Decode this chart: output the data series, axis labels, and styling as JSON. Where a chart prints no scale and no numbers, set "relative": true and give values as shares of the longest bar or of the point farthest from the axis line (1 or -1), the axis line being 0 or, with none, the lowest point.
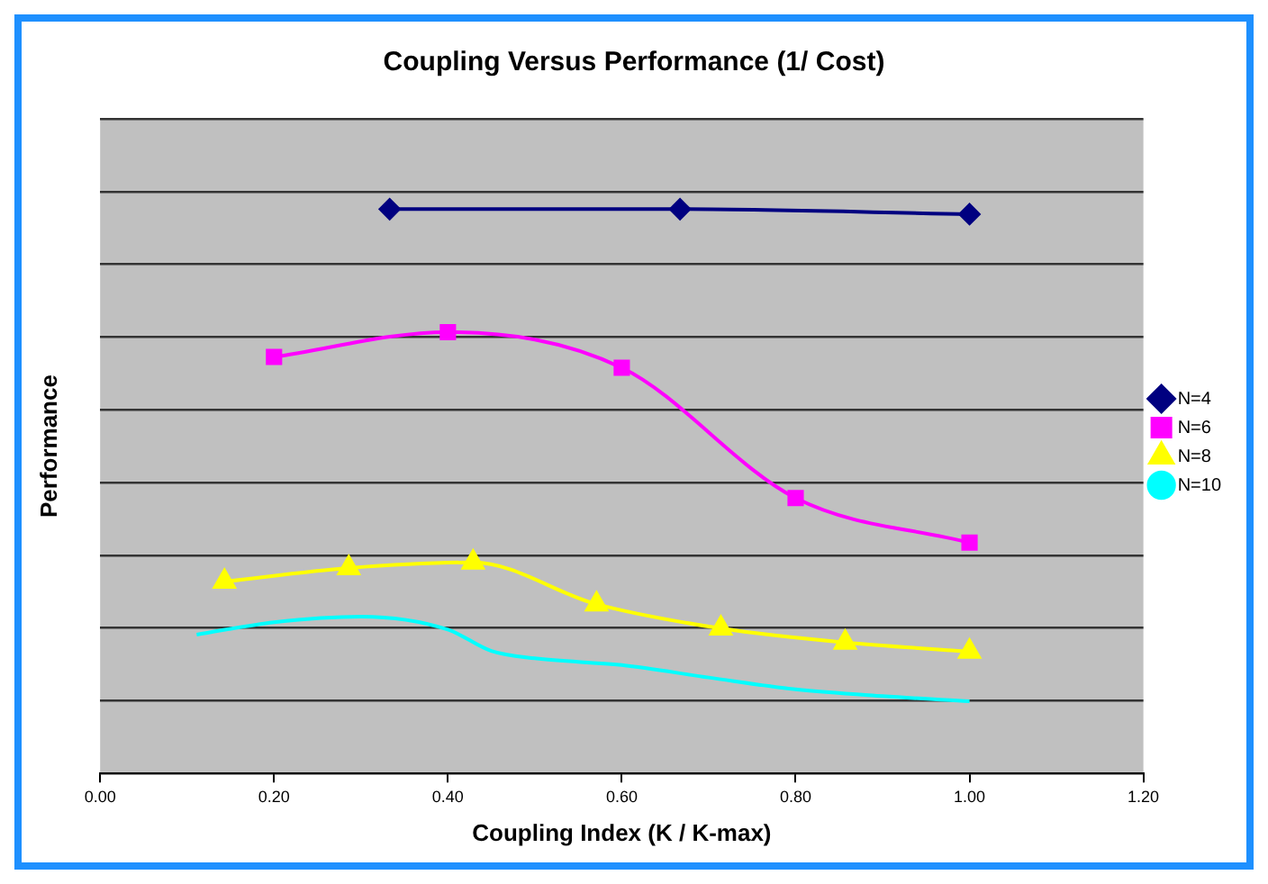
{
  "chart_data": {
    "type": "line",
    "title": "Coupling Versus Performance (1/ Cost)",
    "xlabel": "Coupling Index (K / K-max)",
    "ylabel": "Performance",
    "relative": true,
    "xlim": [
      0,
      1.2
    ],
    "xticks": [
      {
        "value": 0,
        "label": "0.00"
      },
      {
        "value": 0.2,
        "label": "0.20"
      },
      {
        "value": 0.4,
        "label": "0.40"
      },
      {
        "value": 0.6,
        "label": "0.60"
      },
      {
        "value": 0.8,
        "label": "0.80"
      },
      {
        "value": 1,
        "label": "1.00"
      },
      {
        "value": 1.2,
        "label": "1.20"
      }
    ],
    "grid": "y",
    "legend": "right",
    "tick_labels": "x",
    "series": [
      {
        "name": "N=4",
        "color": "#000080",
        "marker": "diamond",
        "x": [
          0.333,
          0.667,
          1.0
        ],
        "values": [
          1.0,
          1.0,
          0.991
        ]
      },
      {
        "name": "N=6",
        "color": "#ff00ff",
        "marker": "square",
        "x": [
          0.2,
          0.4,
          0.6,
          0.8,
          1.0
        ],
        "values": [
          0.738,
          0.782,
          0.719,
          0.488,
          0.409
        ]
      },
      {
        "name": "N=8",
        "color": "#ffff00",
        "marker": "triangle",
        "x": [
          0.143,
          0.286,
          0.429,
          0.571,
          0.714,
          0.857,
          1.0
        ],
        "values": [
          0.34,
          0.364,
          0.374,
          0.3,
          0.257,
          0.232,
          0.216
        ]
      },
      {
        "name": "N=10",
        "color": "#00ffff",
        "marker": "none",
        "x": [
          0.111,
          0.2,
          0.3,
          0.4,
          0.45,
          0.5,
          0.6,
          0.7,
          0.8,
          0.9,
          1.0
        ],
        "values": [
          0.246,
          0.268,
          0.278,
          0.255,
          0.217,
          0.204,
          0.192,
          0.17,
          0.149,
          0.137,
          0.128
        ]
      }
    ]
  }
}
